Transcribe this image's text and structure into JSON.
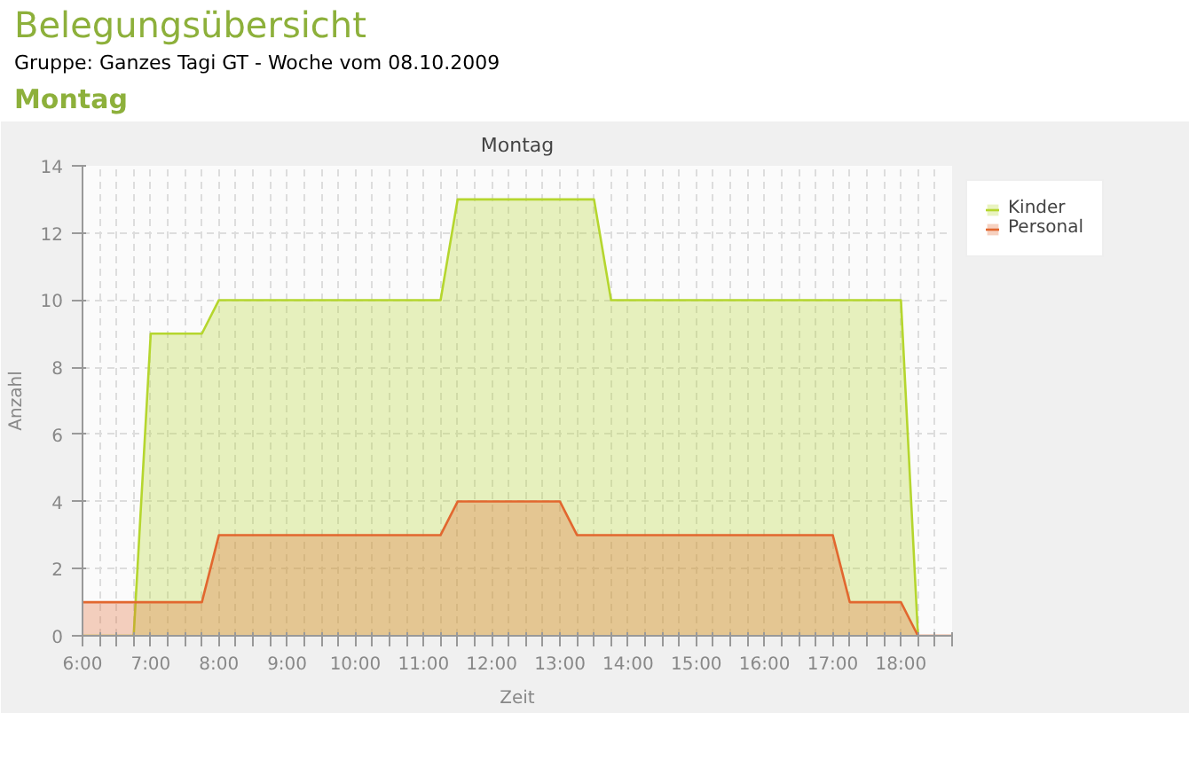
{
  "chart_data": {
    "type": "area",
    "title": "Belegungsübersicht",
    "subtitle": "Gruppe: Ganzes Tagi GT - Woche vom 08.10.2009",
    "annotations": [
      "Montag",
      "Montag"
    ],
    "xlabel": "Zeit",
    "ylabel": "Anzahl",
    "series": [
      {
        "name": "Kinder",
        "color": "#b5d62e",
        "x": [
          6,
          6.75,
          7,
          7.75,
          8,
          11.25,
          11.5,
          13.5,
          13.75,
          18,
          18.25
        ],
        "values": [
          0,
          0,
          9,
          9,
          10,
          10,
          13,
          13,
          10,
          10,
          0
        ]
      },
      {
        "name": "Personal",
        "color": "#e2672f",
        "x": [
          6,
          7.75,
          8,
          11.25,
          11.5,
          13,
          13.25,
          17,
          17.25,
          18,
          18.25,
          18.75
        ],
        "values": [
          1,
          1,
          3,
          3,
          4,
          4,
          3,
          3,
          1,
          1,
          0,
          0
        ]
      }
    ],
    "xlim": [
      6,
      18.75
    ],
    "xticks": [
      {
        "value": 6,
        "label": "6:00"
      },
      {
        "value": 6.25,
        "label": null
      },
      {
        "value": 6.5,
        "label": null
      },
      {
        "value": 6.75,
        "label": null
      },
      {
        "value": 7,
        "label": "7:00"
      },
      {
        "value": 7.25,
        "label": null
      },
      {
        "value": 7.5,
        "label": null
      },
      {
        "value": 7.75,
        "label": null
      },
      {
        "value": 8,
        "label": "8:00"
      },
      {
        "value": 8.25,
        "label": null
      },
      {
        "value": 8.5,
        "label": null
      },
      {
        "value": 8.75,
        "label": null
      },
      {
        "value": 9,
        "label": "9:00"
      },
      {
        "value": 9.25,
        "label": null
      },
      {
        "value": 9.5,
        "label": null
      },
      {
        "value": 9.75,
        "label": null
      },
      {
        "value": 10,
        "label": "10:00"
      },
      {
        "value": 10.25,
        "label": null
      },
      {
        "value": 10.5,
        "label": null
      },
      {
        "value": 10.75,
        "label": null
      },
      {
        "value": 11,
        "label": "11:00"
      },
      {
        "value": 11.25,
        "label": null
      },
      {
        "value": 11.5,
        "label": null
      },
      {
        "value": 11.75,
        "label": null
      },
      {
        "value": 12,
        "label": "12:00"
      },
      {
        "value": 12.25,
        "label": null
      },
      {
        "value": 12.5,
        "label": null
      },
      {
        "value": 12.75,
        "label": null
      },
      {
        "value": 13,
        "label": "13:00"
      },
      {
        "value": 13.25,
        "label": null
      },
      {
        "value": 13.5,
        "label": null
      },
      {
        "value": 13.75,
        "label": null
      },
      {
        "value": 14,
        "label": "14:00"
      },
      {
        "value": 14.25,
        "label": null
      },
      {
        "value": 14.5,
        "label": null
      },
      {
        "value": 14.75,
        "label": null
      },
      {
        "value": 15,
        "label": "15:00"
      },
      {
        "value": 15.25,
        "label": null
      },
      {
        "value": 15.5,
        "label": null
      },
      {
        "value": 15.75,
        "label": null
      },
      {
        "value": 16,
        "label": "16:00"
      },
      {
        "value": 16.25,
        "label": null
      },
      {
        "value": 16.5,
        "label": null
      },
      {
        "value": 16.75,
        "label": null
      },
      {
        "value": 17,
        "label": "17:00"
      },
      {
        "value": 17.25,
        "label": null
      },
      {
        "value": 17.5,
        "label": null
      },
      {
        "value": 17.75,
        "label": null
      },
      {
        "value": 18,
        "label": "18:00"
      },
      {
        "value": 18.25,
        "label": null
      },
      {
        "value": 18.5,
        "label": null
      },
      {
        "value": 18.75,
        "label": null
      }
    ],
    "ylim": [
      0,
      14
    ],
    "yticks": [
      0,
      2,
      4,
      6,
      8,
      10,
      12,
      14
    ],
    "grid": true,
    "legend": "top right",
    "marker": "none",
    "line_style": "solid"
  }
}
